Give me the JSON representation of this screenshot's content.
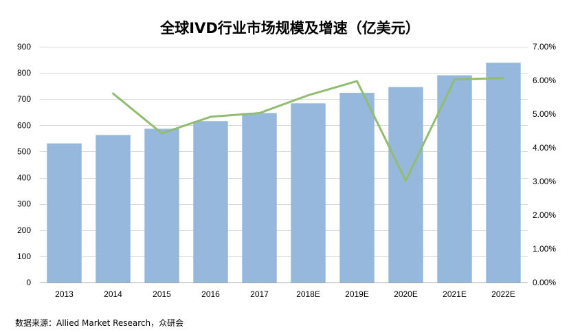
{
  "chart_data": {
    "type": "bar+line",
    "title": "全球IVD行业市场规模及增速（亿美元）",
    "categories": [
      "2013",
      "2014",
      "2015",
      "2016",
      "2017",
      "2018E",
      "2019E",
      "2020E",
      "2021E",
      "2022E"
    ],
    "series": [
      {
        "type": "bar",
        "axis": "left",
        "values": [
          531,
          563,
          587,
          616,
          647,
          684,
          724,
          746,
          791,
          839
        ]
      },
      {
        "type": "line",
        "axis": "right",
        "values": [
          null,
          0.0561,
          0.0443,
          0.0492,
          0.0503,
          0.0556,
          0.0598,
          0.0302,
          0.0603,
          0.0607
        ]
      }
    ],
    "y_left": {
      "min": 0,
      "max": 900,
      "ticks": [
        "0",
        "100",
        "200",
        "300",
        "400",
        "500",
        "600",
        "700",
        "800",
        "900"
      ]
    },
    "y_right": {
      "min": 0,
      "max": 0.07,
      "ticks": [
        "0.00%",
        "1.00%",
        "2.00%",
        "3.00%",
        "4.00%",
        "5.00%",
        "6.00%",
        "7.00%"
      ]
    },
    "grid": true,
    "legend": "none",
    "colors": {
      "bar": "#95b8dc",
      "line": "#92bc6f",
      "grid": "#d9d9d9",
      "axis": "#a6a6a6"
    }
  },
  "source": "数据来源：Allied Market Research，众研会"
}
